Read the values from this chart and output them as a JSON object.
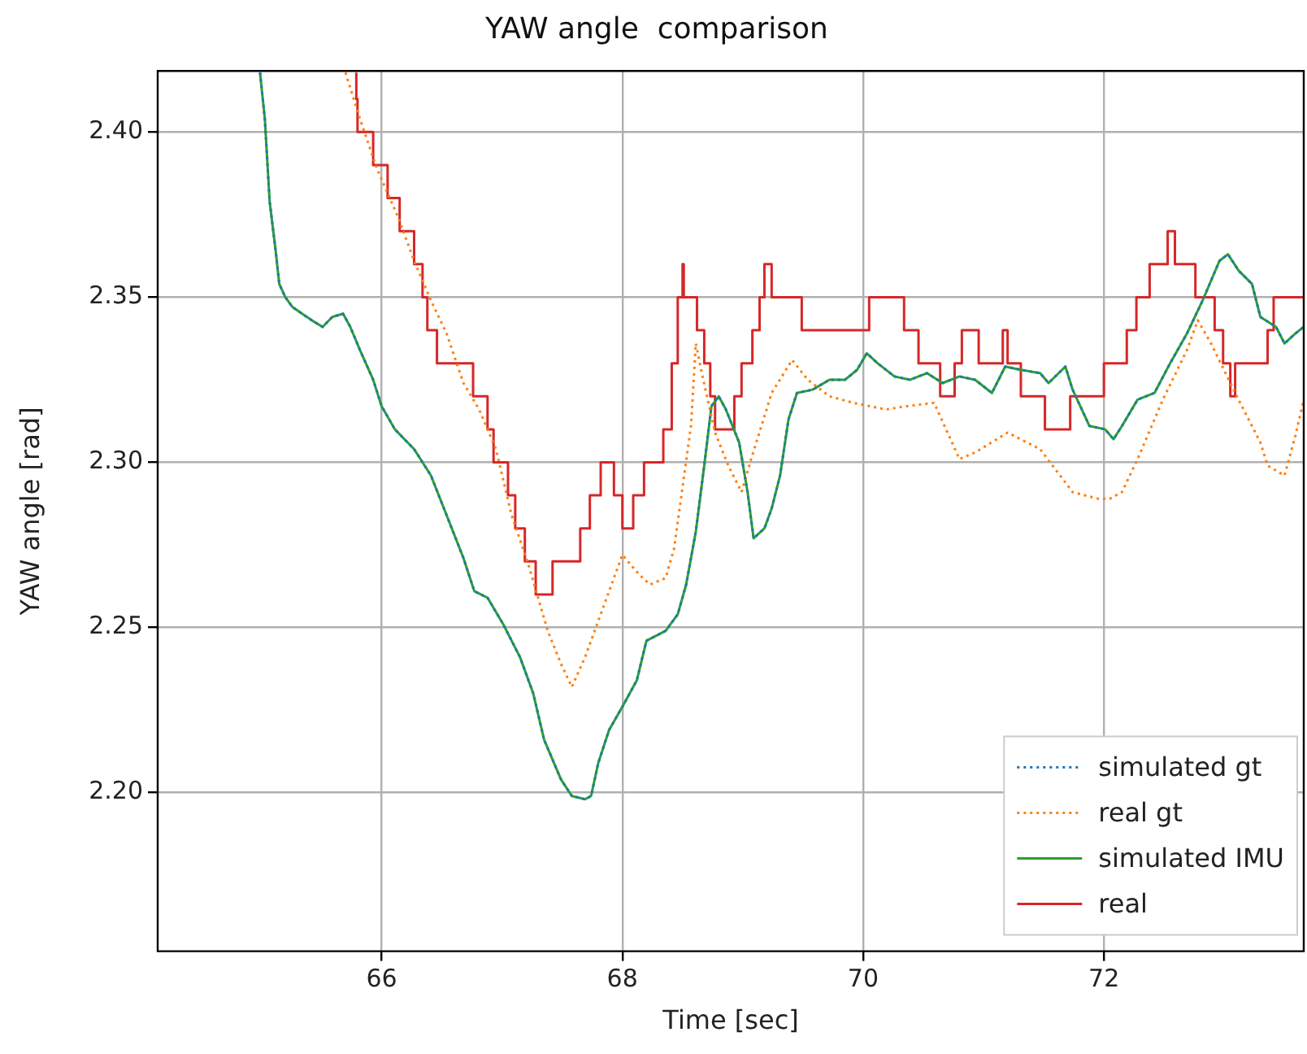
{
  "chart_data": {
    "type": "line",
    "title": "YAW angle  comparison",
    "xlabel": "Time [sec]",
    "ylabel": "YAW angle [rad]",
    "xlim": [
      64.14,
      73.66
    ],
    "ylim": [
      2.152,
      2.4185
    ],
    "xticks": [
      66,
      68,
      70,
      72
    ],
    "yticks": [
      {
        "value": 2.2,
        "label": "2.20"
      },
      {
        "value": 2.25,
        "label": "2.25"
      },
      {
        "value": 2.3,
        "label": "2.30"
      },
      {
        "value": 2.35,
        "label": "2.35"
      },
      {
        "value": 2.4,
        "label": "2.40"
      }
    ],
    "grid": true,
    "legend": "bottom right",
    "marker": "none",
    "series": [
      {
        "name": "simulated gt",
        "color": "#1f77b4",
        "line_style": "dotted",
        "x": [
          64.99,
          65.03,
          65.07,
          65.12,
          65.15,
          65.2,
          65.26,
          65.34,
          65.42,
          65.51,
          65.59,
          65.68,
          65.74,
          65.82,
          65.93,
          66.0,
          66.11,
          66.27,
          66.41,
          66.54,
          66.68,
          66.77,
          66.88,
          67.01,
          67.15,
          67.26,
          67.35,
          67.49,
          67.58,
          67.69,
          67.74,
          67.8,
          67.89,
          68.0,
          68.12,
          68.2,
          68.36,
          68.46,
          68.53,
          68.61,
          68.68,
          68.74,
          68.8,
          68.86,
          68.97,
          69.04,
          69.09,
          69.18,
          69.24,
          69.31,
          69.38,
          69.45,
          69.58,
          69.72,
          69.85,
          69.95,
          70.03,
          70.12,
          70.26,
          70.39,
          70.53,
          70.66,
          70.8,
          70.93,
          71.07,
          71.18,
          71.31,
          71.47,
          71.54,
          71.68,
          71.74,
          71.88,
          72.01,
          72.08,
          72.15,
          72.28,
          72.42,
          72.55,
          72.69,
          72.82,
          72.96,
          73.03,
          73.12,
          73.23,
          73.3,
          73.43,
          73.5,
          73.59,
          73.66
        ],
        "values": [
          2.418,
          2.404,
          2.379,
          2.364,
          2.354,
          2.35,
          2.347,
          2.345,
          2.343,
          2.341,
          2.344,
          2.345,
          2.341,
          2.334,
          2.325,
          2.317,
          2.31,
          2.304,
          2.296,
          2.284,
          2.271,
          2.261,
          2.259,
          2.251,
          2.241,
          2.23,
          2.216,
          2.204,
          2.199,
          2.198,
          2.199,
          2.209,
          2.219,
          2.226,
          2.234,
          2.246,
          2.249,
          2.254,
          2.263,
          2.279,
          2.299,
          2.317,
          2.32,
          2.316,
          2.306,
          2.291,
          2.277,
          2.28,
          2.286,
          2.296,
          2.313,
          2.321,
          2.322,
          2.325,
          2.325,
          2.328,
          2.333,
          2.33,
          2.326,
          2.325,
          2.327,
          2.324,
          2.326,
          2.325,
          2.321,
          2.329,
          2.328,
          2.327,
          2.324,
          2.329,
          2.322,
          2.311,
          2.31,
          2.307,
          2.311,
          2.319,
          2.321,
          2.33,
          2.339,
          2.349,
          2.361,
          2.363,
          2.358,
          2.354,
          2.344,
          2.341,
          2.336,
          2.339,
          2.341
        ]
      },
      {
        "name": "real gt",
        "color": "#ff7f0e",
        "line_style": "dotted",
        "x": [
          65.7,
          65.82,
          65.96,
          66.14,
          66.27,
          66.41,
          66.54,
          66.68,
          66.81,
          66.95,
          67.08,
          67.22,
          67.38,
          67.49,
          67.58,
          67.69,
          67.82,
          68.0,
          68.14,
          68.23,
          68.36,
          68.43,
          68.57,
          68.61,
          68.66,
          68.77,
          68.88,
          68.99,
          69.07,
          69.24,
          69.41,
          69.54,
          69.72,
          69.92,
          70.19,
          70.36,
          70.59,
          70.8,
          70.93,
          71.2,
          71.47,
          71.74,
          71.95,
          72.05,
          72.15,
          72.28,
          72.49,
          72.69,
          72.78,
          72.89,
          73.09,
          73.3,
          73.36,
          73.5,
          73.59,
          73.66
        ],
        "values": [
          2.418,
          2.404,
          2.389,
          2.374,
          2.361,
          2.349,
          2.339,
          2.324,
          2.316,
          2.304,
          2.284,
          2.269,
          2.249,
          2.239,
          2.232,
          2.241,
          2.254,
          2.272,
          2.266,
          2.263,
          2.265,
          2.274,
          2.311,
          2.336,
          2.327,
          2.309,
          2.299,
          2.291,
          2.301,
          2.321,
          2.331,
          2.325,
          2.32,
          2.318,
          2.316,
          2.317,
          2.318,
          2.301,
          2.303,
          2.309,
          2.304,
          2.291,
          2.289,
          2.289,
          2.291,
          2.301,
          2.319,
          2.334,
          2.343,
          2.336,
          2.321,
          2.306,
          2.299,
          2.296,
          2.308,
          2.319
        ]
      },
      {
        "name": "simulated IMU",
        "color": "#2ca02c",
        "line_style": "solid",
        "x": [
          64.99,
          65.03,
          65.07,
          65.12,
          65.15,
          65.2,
          65.26,
          65.34,
          65.42,
          65.51,
          65.59,
          65.68,
          65.74,
          65.82,
          65.93,
          66.0,
          66.11,
          66.27,
          66.41,
          66.54,
          66.68,
          66.77,
          66.88,
          67.01,
          67.15,
          67.26,
          67.35,
          67.49,
          67.58,
          67.69,
          67.74,
          67.8,
          67.89,
          68.0,
          68.12,
          68.2,
          68.36,
          68.46,
          68.53,
          68.61,
          68.68,
          68.74,
          68.8,
          68.86,
          68.97,
          69.04,
          69.09,
          69.18,
          69.24,
          69.31,
          69.38,
          69.45,
          69.58,
          69.72,
          69.85,
          69.95,
          70.03,
          70.12,
          70.26,
          70.39,
          70.53,
          70.66,
          70.8,
          70.93,
          71.07,
          71.18,
          71.31,
          71.47,
          71.54,
          71.68,
          71.74,
          71.88,
          72.01,
          72.08,
          72.15,
          72.28,
          72.42,
          72.55,
          72.69,
          72.82,
          72.96,
          73.03,
          73.12,
          73.23,
          73.3,
          73.43,
          73.5,
          73.59,
          73.66
        ],
        "values": [
          2.418,
          2.404,
          2.379,
          2.364,
          2.354,
          2.35,
          2.347,
          2.345,
          2.343,
          2.341,
          2.344,
          2.345,
          2.341,
          2.334,
          2.325,
          2.317,
          2.31,
          2.304,
          2.296,
          2.284,
          2.271,
          2.261,
          2.259,
          2.251,
          2.241,
          2.23,
          2.216,
          2.204,
          2.199,
          2.198,
          2.199,
          2.209,
          2.219,
          2.226,
          2.234,
          2.246,
          2.249,
          2.254,
          2.263,
          2.279,
          2.299,
          2.317,
          2.32,
          2.316,
          2.306,
          2.291,
          2.277,
          2.28,
          2.286,
          2.296,
          2.313,
          2.321,
          2.322,
          2.325,
          2.325,
          2.328,
          2.333,
          2.33,
          2.326,
          2.325,
          2.327,
          2.324,
          2.326,
          2.325,
          2.321,
          2.329,
          2.328,
          2.327,
          2.324,
          2.329,
          2.322,
          2.311,
          2.31,
          2.307,
          2.311,
          2.319,
          2.321,
          2.33,
          2.339,
          2.349,
          2.361,
          2.363,
          2.358,
          2.354,
          2.344,
          2.341,
          2.336,
          2.339,
          2.341
        ]
      },
      {
        "name": "real",
        "type": "step",
        "color": "#d62728",
        "line_style": "solid",
        "x": [
          65.79,
          65.8,
          65.93,
          66.05,
          66.15,
          66.27,
          66.34,
          66.38,
          66.46,
          66.76,
          66.88,
          66.93,
          67.05,
          67.11,
          67.19,
          67.28,
          67.42,
          67.65,
          67.73,
          67.82,
          67.93,
          68.0,
          68.09,
          68.18,
          68.34,
          68.41,
          68.46,
          68.5,
          68.51,
          68.62,
          68.68,
          68.73,
          68.77,
          68.93,
          68.99,
          69.08,
          69.14,
          69.18,
          69.24,
          69.49,
          70.05,
          70.34,
          70.46,
          70.64,
          70.76,
          70.82,
          70.96,
          71.16,
          71.2,
          71.31,
          71.51,
          71.72,
          72.0,
          72.19,
          72.27,
          72.38,
          72.53,
          72.59,
          72.76,
          72.92,
          72.99,
          73.05,
          73.09,
          73.36,
          73.41,
          73.54,
          73.66
        ],
        "values": [
          2.418,
          2.41,
          2.4,
          2.39,
          2.38,
          2.37,
          2.36,
          2.35,
          2.34,
          2.33,
          2.32,
          2.31,
          2.3,
          2.29,
          2.28,
          2.27,
          2.26,
          2.27,
          2.28,
          2.29,
          2.3,
          2.29,
          2.28,
          2.29,
          2.3,
          2.31,
          2.33,
          2.35,
          2.36,
          2.35,
          2.34,
          2.33,
          2.32,
          2.31,
          2.32,
          2.33,
          2.34,
          2.35,
          2.36,
          2.35,
          2.34,
          2.35,
          2.34,
          2.33,
          2.32,
          2.33,
          2.34,
          2.33,
          2.34,
          2.33,
          2.32,
          2.31,
          2.32,
          2.33,
          2.34,
          2.35,
          2.36,
          2.37,
          2.36,
          2.35,
          2.34,
          2.33,
          2.32,
          2.33,
          2.34,
          2.35,
          2.35
        ]
      }
    ]
  }
}
